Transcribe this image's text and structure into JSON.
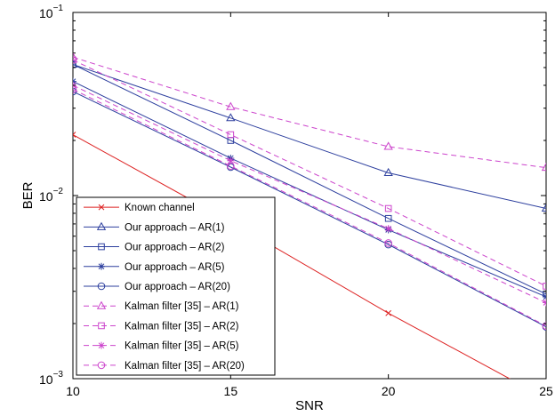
{
  "chart_data": {
    "type": "line",
    "title": "",
    "xlabel": "SNR",
    "ylabel": "BER",
    "x": [
      10,
      15,
      20,
      25
    ],
    "x_ticks": [
      "10",
      "15",
      "20",
      "25"
    ],
    "xlim": [
      10,
      25
    ],
    "ylim": [
      0.001,
      0.1
    ],
    "yscale": "log",
    "y_ticks": [
      {
        "value": 0.1,
        "base": "10",
        "exp": "−1"
      },
      {
        "value": 0.01,
        "base": "10",
        "exp": "−2"
      },
      {
        "value": 0.001,
        "base": "10",
        "exp": "−3"
      }
    ],
    "grid": false,
    "legend_position": "bottom-left",
    "series": [
      {
        "name": "Known channel",
        "color": "#dd2222",
        "dash": "solid",
        "marker": "x",
        "values": [
          0.0215,
          0.0072,
          0.00228,
          0.00078
        ]
      },
      {
        "name": "Our approach – AR(1)",
        "color": "#2d3f9e",
        "dash": "solid",
        "marker": "triangle",
        "values": [
          0.052,
          0.0265,
          0.0133,
          0.0085
        ]
      },
      {
        "name": "Our approach – AR(2)",
        "color": "#2d3f9e",
        "dash": "solid",
        "marker": "square",
        "values": [
          0.052,
          0.02,
          0.0075,
          0.0029
        ]
      },
      {
        "name": "Our approach – AR(5)",
        "color": "#2d3f9e",
        "dash": "solid",
        "marker": "asterisk",
        "values": [
          0.042,
          0.016,
          0.0065,
          0.0028
        ]
      },
      {
        "name": "Our approach – AR(20)",
        "color": "#2d3f9e",
        "dash": "solid",
        "marker": "circle",
        "values": [
          0.037,
          0.0143,
          0.0054,
          0.00192
        ]
      },
      {
        "name": "Kalman filter [35] – AR(1)",
        "color": "#cc44cc",
        "dash": "dashed",
        "marker": "triangle",
        "values": [
          0.057,
          0.0305,
          0.0185,
          0.0142
        ]
      },
      {
        "name": "Kalman filter [35] – AR(2)",
        "color": "#cc44cc",
        "dash": "dashed",
        "marker": "square",
        "values": [
          0.055,
          0.0215,
          0.0085,
          0.0032
        ]
      },
      {
        "name": "Kalman filter [35] – AR(5)",
        "color": "#cc44cc",
        "dash": "dashed",
        "marker": "asterisk",
        "values": [
          0.04,
          0.0155,
          0.0066,
          0.0026
        ]
      },
      {
        "name": "Kalman filter [35] – AR(20)",
        "color": "#cc44cc",
        "dash": "dashed",
        "marker": "circle",
        "values": [
          0.038,
          0.0145,
          0.0055,
          0.00194
        ]
      }
    ]
  }
}
